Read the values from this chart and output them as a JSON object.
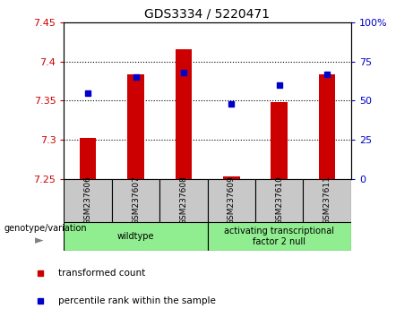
{
  "title": "GDS3334 / 5220471",
  "samples": [
    "GSM237606",
    "GSM237607",
    "GSM237608",
    "GSM237609",
    "GSM237610",
    "GSM237611"
  ],
  "transformed_counts": [
    7.302,
    7.383,
    7.415,
    7.253,
    7.348,
    7.383
  ],
  "percentile_ranks": [
    55,
    65,
    68,
    48,
    60,
    67
  ],
  "ylim_left": [
    7.25,
    7.45
  ],
  "ylim_right": [
    0,
    100
  ],
  "yticks_left": [
    7.25,
    7.3,
    7.35,
    7.4,
    7.45
  ],
  "yticks_right": [
    0,
    25,
    50,
    75,
    100
  ],
  "bar_color": "#cc0000",
  "dot_color": "#0000cc",
  "bar_bottom": 7.25,
  "groups": [
    {
      "label": "wildtype",
      "samples": [
        0,
        1,
        2
      ],
      "color": "#90ee90"
    },
    {
      "label": "activating transcriptional\nfactor 2 null",
      "samples": [
        3,
        4,
        5
      ],
      "color": "#90ee90"
    }
  ],
  "group_label_prefix": "genotype/variation",
  "legend_items": [
    {
      "label": "transformed count",
      "color": "#cc0000"
    },
    {
      "label": "percentile rank within the sample",
      "color": "#0000cc"
    }
  ],
  "grid_color": "black",
  "background_color": "#ffffff",
  "tick_color_left": "#cc0000",
  "tick_color_right": "#0000cc",
  "xlabel_area_color": "#c8c8c8",
  "bar_width": 0.35
}
